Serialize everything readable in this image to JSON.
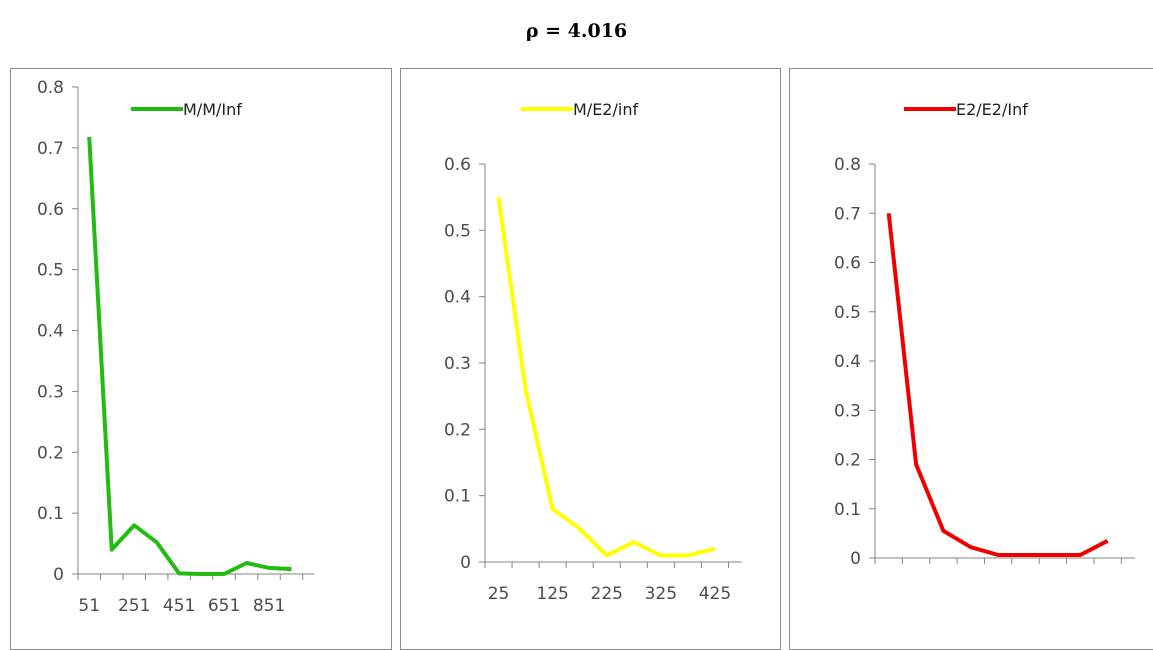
{
  "title": "ρ = 4.016",
  "chart_data": [
    {
      "type": "line",
      "title": "",
      "ylim": [
        0,
        0.8
      ],
      "yticks": [
        "0",
        "0.1",
        "0.2",
        "0.3",
        "0.4",
        "0.5",
        "0.6",
        "0.7",
        "0.8"
      ],
      "xticks": [
        "51",
        "251",
        "451",
        "651",
        "851"
      ],
      "x": [
        51,
        151,
        251,
        351,
        451,
        551,
        651,
        751,
        851,
        951
      ],
      "legend": "top-right",
      "grid": false,
      "series": [
        {
          "name": "M/M/Inf",
          "color": "#22bb11",
          "values": [
            0.718,
            0.04,
            0.08,
            0.052,
            0.001,
            0.0,
            0.0,
            0.018,
            0.01,
            0.008
          ]
        }
      ]
    },
    {
      "type": "line",
      "title": "",
      "ylim": [
        0,
        0.6
      ],
      "yticks": [
        "0",
        "0.1",
        "0.2",
        "0.3",
        "0.4",
        "0.5",
        "0.6"
      ],
      "xticks": [
        "25",
        "125",
        "225",
        "325",
        "425"
      ],
      "x": [
        25,
        75,
        125,
        175,
        225,
        275,
        325,
        375,
        425
      ],
      "legend": "top-right",
      "grid": false,
      "series": [
        {
          "name": "M/E2/inf",
          "color": "#ffff00",
          "values": [
            0.55,
            0.26,
            0.08,
            0.05,
            0.01,
            0.03,
            0.01,
            0.01,
            0.02
          ]
        }
      ]
    },
    {
      "type": "line",
      "title": "",
      "ylim": [
        0,
        0.8
      ],
      "yticks": [
        "0",
        "0.1",
        "0.2",
        "0.3",
        "0.4",
        "0.5",
        "0.6",
        "0.7",
        "0.8"
      ],
      "xticks": [],
      "x": [
        1,
        2,
        3,
        4,
        5,
        6,
        7,
        8,
        9
      ],
      "legend": "top-right",
      "grid": false,
      "series": [
        {
          "name": "E2/E2/Inf",
          "color": "#ee0000",
          "values": [
            0.7,
            0.19,
            0.055,
            0.022,
            0.006,
            0.006,
            0.006,
            0.006,
            0.035
          ]
        }
      ]
    }
  ]
}
